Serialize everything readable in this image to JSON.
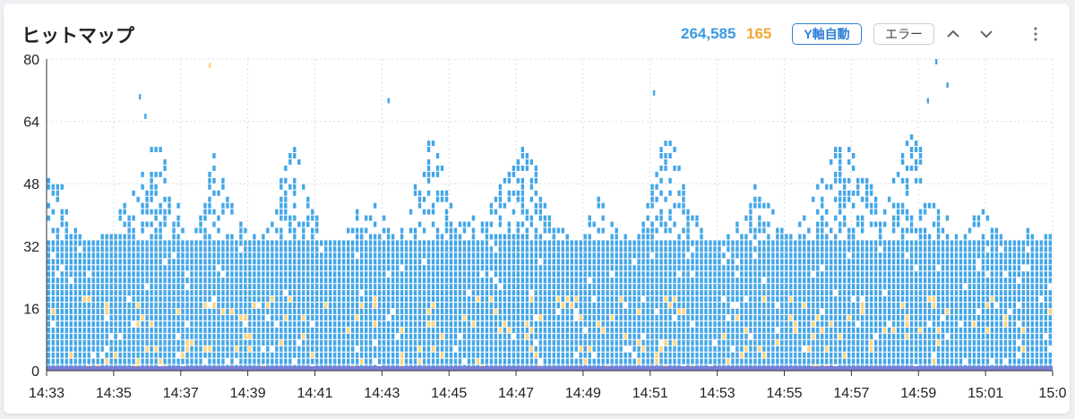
{
  "header": {
    "title": "ヒットマップ",
    "count_total": "264,585",
    "count_error": "165",
    "y_axis_button": "Y軸自動",
    "error_button": "エラー",
    "icons": [
      "chevron-up-icon",
      "chevron-down-icon",
      "more-vertical-icon"
    ]
  },
  "chart_data": {
    "type": "heatmap",
    "ylim": [
      0,
      80
    ],
    "y_ticks": [
      "80",
      "64",
      "48",
      "32",
      "16",
      "0"
    ],
    "x_ticks": [
      "14:33",
      "14:35",
      "14:37",
      "14:39",
      "14:41",
      "14:43",
      "14:45",
      "14:47",
      "14:49",
      "14:51",
      "14:53",
      "14:55",
      "14:57",
      "14:59",
      "15:01",
      "15:0"
    ],
    "x_range": [
      "14:33",
      "15:03"
    ],
    "grid": true,
    "colors": {
      "normal": "#43a6e8",
      "error": "#ffd27a",
      "base": "#7b7fd4",
      "grid": "#d9dde2"
    },
    "bins": 225,
    "y_bin_size": 1.6,
    "series": [
      {
        "name": "",
        "note": "hit density columns",
        "color": "#43a6e8"
      },
      {
        "name": "",
        "note": "error hits",
        "color": "#ffd27a"
      }
    ],
    "column_max_y": [
      54,
      50,
      48,
      52,
      44,
      40,
      38,
      36,
      34,
      34,
      34,
      34,
      36,
      38,
      36,
      40,
      44,
      46,
      46,
      48,
      50,
      52,
      56,
      58,
      60,
      58,
      56,
      52,
      48,
      44,
      40,
      38,
      36,
      38,
      40,
      46,
      52,
      56,
      54,
      50,
      46,
      44,
      42,
      40,
      40,
      38,
      36,
      36,
      36,
      38,
      40,
      44,
      50,
      54,
      58,
      60,
      56,
      50,
      46,
      42,
      40,
      38,
      36,
      34,
      34,
      34,
      36,
      38,
      40,
      42,
      44,
      46,
      46,
      44,
      42,
      40,
      38,
      36,
      36,
      38,
      40,
      44,
      48,
      52,
      56,
      60,
      60,
      58,
      54,
      50,
      46,
      44,
      42,
      40,
      40,
      40,
      38,
      40,
      42,
      44,
      46,
      48,
      50,
      52,
      54,
      58,
      60,
      60,
      58,
      54,
      50,
      46,
      42,
      40,
      38,
      38,
      36,
      36,
      34,
      36,
      38,
      40,
      44,
      46,
      44,
      42,
      40,
      38,
      36,
      36,
      34,
      36,
      38,
      42,
      46,
      50,
      54,
      58,
      60,
      60,
      58,
      54,
      50,
      46,
      42,
      40,
      38,
      36,
      34,
      34,
      34,
      34,
      36,
      38,
      40,
      42,
      44,
      46,
      48,
      48,
      46,
      44,
      42,
      40,
      38,
      38,
      36,
      38,
      40,
      42,
      44,
      46,
      48,
      50,
      52,
      56,
      60,
      62,
      60,
      58,
      56,
      54,
      52,
      50,
      48,
      46,
      44,
      44,
      46,
      50,
      54,
      58,
      60,
      62,
      60,
      58,
      54,
      50,
      46,
      42,
      40,
      40,
      38,
      38,
      36,
      36,
      38,
      40,
      40,
      42,
      40,
      38,
      38,
      36,
      36,
      36,
      34,
      34,
      36,
      38,
      36,
      34,
      34,
      36,
      38
    ],
    "outliers": [
      {
        "x": "14:35:45",
        "y": 71,
        "color": "#43a6e8"
      },
      {
        "x": "14:35:55",
        "y": 66,
        "color": "#43a6e8"
      },
      {
        "x": "14:37:50",
        "y": 79,
        "color": "#ffd27a"
      },
      {
        "x": "14:43:10",
        "y": 70,
        "color": "#43a6e8"
      },
      {
        "x": "14:51:05",
        "y": 72,
        "color": "#43a6e8"
      },
      {
        "x": "14:59:15",
        "y": 70,
        "color": "#43a6e8"
      },
      {
        "x": "14:59:30",
        "y": 80,
        "color": "#43a6e8"
      },
      {
        "x": "14:59:50",
        "y": 74,
        "color": "#43a6e8"
      }
    ]
  }
}
